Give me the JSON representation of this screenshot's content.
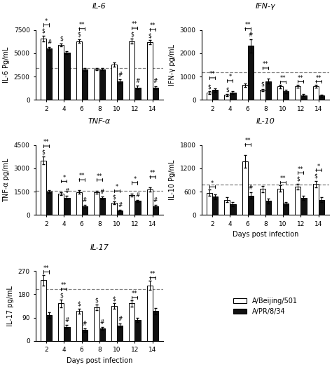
{
  "chart_data": [
    {
      "type": "bar",
      "title": "IL-6",
      "y_label": "IL-6 Pg/mL",
      "categories": [
        "2",
        "4",
        "6",
        "8",
        "10",
        "12",
        "14"
      ],
      "ylim": [
        0,
        7500
      ],
      "yticks": [
        0,
        2500,
        5000,
        7500
      ],
      "reference_line": 3400,
      "series": [
        {
          "name": "A/Beijing/501",
          "color": "#ffffff",
          "values": [
            6600,
            5900,
            6300,
            3300,
            3800,
            6300,
            6200
          ],
          "errors": [
            300,
            150,
            200,
            100,
            200,
            250,
            200
          ]
        },
        {
          "name": "A/PR/8/34",
          "color": "#111111",
          "values": [
            5500,
            5100,
            3300,
            3300,
            2000,
            1350,
            1350
          ],
          "errors": [
            200,
            150,
            150,
            100,
            200,
            200,
            150
          ]
        }
      ],
      "annotations": [
        {
          "category": "2",
          "text": "*"
        },
        {
          "category": "6",
          "text": "**"
        },
        {
          "category": "12",
          "text": "**"
        },
        {
          "category": "14",
          "text": "**"
        },
        {
          "category": "2",
          "series": "A/Beijing/501",
          "text": "$"
        },
        {
          "category": "4",
          "series": "A/Beijing/501",
          "text": "$"
        },
        {
          "category": "6",
          "series": "A/Beijing/501",
          "text": "$"
        },
        {
          "category": "12",
          "series": "A/Beijing/501",
          "text": "$"
        },
        {
          "category": "14",
          "series": "A/Beijing/501",
          "text": "$"
        },
        {
          "category": "2",
          "series": "A/PR/8/34",
          "text": "#"
        },
        {
          "category": "10",
          "series": "A/PR/8/34",
          "text": "#"
        },
        {
          "category": "12",
          "series": "A/PR/8/34",
          "text": "#"
        },
        {
          "category": "14",
          "series": "A/PR/8/34",
          "text": "#"
        }
      ]
    },
    {
      "type": "bar",
      "title": "IFN-γ",
      "y_label": "IFN-γ pg/mL",
      "categories": [
        "2",
        "4",
        "6",
        "8",
        "10",
        "12",
        "14"
      ],
      "ylim": [
        0,
        3000
      ],
      "yticks": [
        0,
        1000,
        2000,
        3000
      ],
      "reference_line": 1180,
      "series": [
        {
          "name": "A/Beijing/501",
          "color": "#ffffff",
          "values": [
            310,
            210,
            640,
            420,
            580,
            590,
            590
          ],
          "errors": [
            50,
            40,
            80,
            60,
            70,
            70,
            70
          ]
        },
        {
          "name": "A/PR/8/34",
          "color": "#111111",
          "values": [
            420,
            310,
            2320,
            810,
            360,
            200,
            180
          ],
          "errors": [
            70,
            60,
            280,
            100,
            70,
            50,
            50
          ]
        }
      ],
      "annotations": [
        {
          "category": "2",
          "text": "**"
        },
        {
          "category": "4",
          "text": "*"
        },
        {
          "category": "6",
          "text": "**"
        },
        {
          "category": "8",
          "text": "**"
        },
        {
          "category": "10",
          "text": "**"
        },
        {
          "category": "12",
          "text": "**"
        },
        {
          "category": "14",
          "text": "**"
        },
        {
          "category": "2",
          "series": "A/Beijing/501",
          "text": "$"
        },
        {
          "category": "4",
          "series": "A/Beijing/501",
          "text": "$"
        },
        {
          "category": "8",
          "series": "A/Beijing/501",
          "text": "$"
        },
        {
          "category": "6",
          "series": "A/PR/8/34",
          "text": "#"
        }
      ]
    },
    {
      "type": "bar",
      "title": "TNF-α",
      "y_label": "TNF-α pg/mL",
      "categories": [
        "2",
        "4",
        "6",
        "8",
        "10",
        "12",
        "14"
      ],
      "ylim": [
        0,
        4500
      ],
      "yticks": [
        0,
        1500,
        3000,
        4500
      ],
      "reference_line": 1560,
      "series": [
        {
          "name": "A/Beijing/501",
          "color": "#ffffff",
          "values": [
            3500,
            1380,
            1480,
            1470,
            780,
            1280,
            1650
          ],
          "errors": [
            250,
            100,
            100,
            100,
            80,
            100,
            120
          ]
        },
        {
          "name": "A/PR/8/34",
          "color": "#111111",
          "values": [
            1500,
            1120,
            550,
            1100,
            300,
            900,
            560
          ],
          "errors": [
            100,
            100,
            80,
            100,
            50,
            80,
            80
          ]
        }
      ],
      "annotations": [
        {
          "category": "2",
          "text": "**"
        },
        {
          "category": "4",
          "text": "*"
        },
        {
          "category": "6",
          "text": "**"
        },
        {
          "category": "8",
          "text": "**"
        },
        {
          "category": "10",
          "text": "*"
        },
        {
          "category": "12",
          "text": "*"
        },
        {
          "category": "14",
          "text": "**"
        },
        {
          "category": "2",
          "series": "A/Beijing/501",
          "text": "$"
        },
        {
          "category": "10",
          "series": "A/Beijing/501",
          "text": "$"
        },
        {
          "category": "4",
          "series": "A/PR/8/34",
          "text": "#"
        },
        {
          "category": "6",
          "series": "A/PR/8/34",
          "text": "#"
        },
        {
          "category": "8",
          "series": "A/PR/8/34",
          "text": "#"
        },
        {
          "category": "10",
          "series": "A/PR/8/34",
          "text": "#"
        },
        {
          "category": "12",
          "series": "A/PR/8/34",
          "text": "#"
        },
        {
          "category": "14",
          "series": "A/PR/8/34",
          "text": "#"
        }
      ]
    },
    {
      "type": "bar",
      "title": "IL-10",
      "y_label": "IL-10 Pg/mL",
      "x_label": "Days post infection",
      "categories": [
        "2",
        "4",
        "6",
        "8",
        "10",
        "12",
        "14"
      ],
      "ylim": [
        0,
        1800
      ],
      "yticks": [
        0,
        600,
        1200,
        1800
      ],
      "reference_line": 780,
      "series": [
        {
          "name": "A/Beijing/501",
          "color": "#ffffff",
          "values": [
            570,
            390,
            1380,
            670,
            680,
            730,
            800
          ],
          "errors": [
            80,
            60,
            160,
            80,
            80,
            80,
            80
          ]
        },
        {
          "name": "A/PR/8/34",
          "color": "#111111",
          "values": [
            470,
            280,
            500,
            360,
            290,
            440,
            390
          ],
          "errors": [
            60,
            50,
            80,
            60,
            50,
            60,
            60
          ]
        }
      ],
      "annotations": [
        {
          "category": "2",
          "text": "*"
        },
        {
          "category": "6",
          "text": "**"
        },
        {
          "category": "10",
          "text": "**"
        },
        {
          "category": "12",
          "text": "**"
        },
        {
          "category": "14",
          "text": "*"
        },
        {
          "category": "12",
          "series": "A/Beijing/501",
          "text": "$"
        },
        {
          "category": "14",
          "series": "A/Beijing/501",
          "text": "$"
        },
        {
          "category": "6",
          "series": "A/PR/8/34",
          "text": "#"
        }
      ]
    },
    {
      "type": "bar",
      "title": "IL-17",
      "y_label": "IL-17 pg/mL",
      "x_label": "Days post infection",
      "categories": [
        "2",
        "4",
        "6",
        "8",
        "10",
        "12",
        "14"
      ],
      "ylim": [
        0,
        270
      ],
      "yticks": [
        0,
        90,
        180,
        270
      ],
      "reference_line": 200,
      "legend": "center",
      "series": [
        {
          "name": "A/Beijing/501",
          "color": "#ffffff",
          "values": [
            235,
            145,
            115,
            130,
            135,
            145,
            215
          ],
          "errors": [
            20,
            14,
            10,
            10,
            10,
            12,
            18
          ]
        },
        {
          "name": "A/PR/8/34",
          "color": "#111111",
          "values": [
            100,
            55,
            42,
            48,
            60,
            80,
            115
          ],
          "errors": [
            10,
            7,
            6,
            6,
            7,
            8,
            12
          ]
        }
      ],
      "annotations": [
        {
          "category": "2",
          "text": "**"
        },
        {
          "category": "4",
          "text": "**"
        },
        {
          "category": "12",
          "text": "**"
        },
        {
          "category": "14",
          "text": "**"
        },
        {
          "category": "4",
          "series": "A/Beijing/501",
          "text": "$"
        },
        {
          "category": "6",
          "series": "A/Beijing/501",
          "text": "$"
        },
        {
          "category": "8",
          "series": "A/Beijing/501",
          "text": "$"
        },
        {
          "category": "10",
          "series": "A/Beijing/501",
          "text": "$"
        },
        {
          "category": "4",
          "series": "A/PR/8/34",
          "text": "#"
        },
        {
          "category": "6",
          "series": "A/PR/8/34",
          "text": "#"
        },
        {
          "category": "8",
          "series": "A/PR/8/34",
          "text": "#"
        },
        {
          "category": "10",
          "series": "A/PR/8/34",
          "text": "#"
        }
      ]
    }
  ]
}
